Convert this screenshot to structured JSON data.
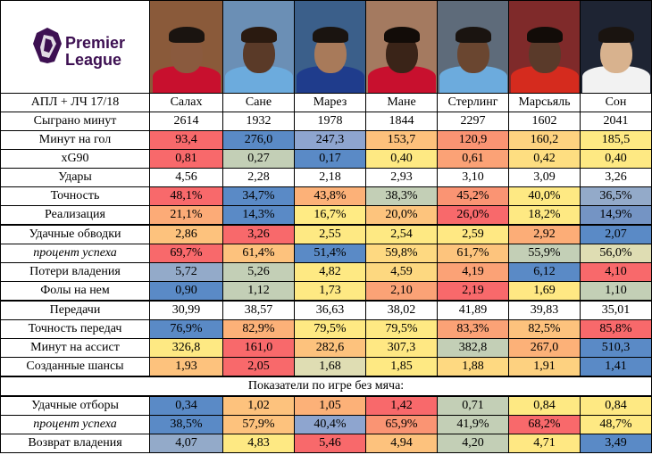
{
  "brand": {
    "line1": "Premier",
    "line2": "League"
  },
  "header": {
    "label": "АПЛ + ЛЧ 17/18",
    "players": [
      "Салах",
      "Сане",
      "Марез",
      "Мане",
      "Стерлинг",
      "Марсьяль",
      "Сон"
    ]
  },
  "rows": [
    {
      "label": "Сыграно минут",
      "italic": false,
      "values": [
        "2614",
        "1932",
        "1978",
        "1844",
        "2297",
        "1602",
        "2041"
      ],
      "colors": [
        "#ffffff",
        "#ffffff",
        "#ffffff",
        "#ffffff",
        "#ffffff",
        "#ffffff",
        "#ffffff"
      ]
    },
    {
      "label": "Минут на гол",
      "italic": false,
      "values": [
        "93,4",
        "276,0",
        "247,3",
        "153,7",
        "120,9",
        "160,2",
        "185,5"
      ],
      "colors": [
        "#f8696b",
        "#5a8ac6",
        "#8ea5cf",
        "#fdc17c",
        "#fa9473",
        "#fed280",
        "#fee983"
      ]
    },
    {
      "label": "xG90",
      "italic": false,
      "values": [
        "0,81",
        "0,27",
        "0,17",
        "0,40",
        "0,61",
        "0,42",
        "0,40"
      ],
      "colors": [
        "#f8696b",
        "#c3cfb6",
        "#5a8ac6",
        "#fee983",
        "#fba276",
        "#fede81",
        "#fee983"
      ]
    },
    {
      "label": "Удары",
      "italic": false,
      "values": [
        "4,56",
        "2,28",
        "2,18",
        "2,93",
        "3,10",
        "3,09",
        "3,26"
      ],
      "colors": [
        "#ffffff",
        "#ffffff",
        "#ffffff",
        "#ffffff",
        "#ffffff",
        "#ffffff",
        "#ffffff"
      ]
    },
    {
      "label": "Точность",
      "italic": false,
      "values": [
        "48,1%",
        "34,7%",
        "43,8%",
        "38,3%",
        "45,2%",
        "40,0%",
        "36,5%"
      ],
      "colors": [
        "#f8696b",
        "#5a8ac6",
        "#fcb178",
        "#c3cfb6",
        "#fa9473",
        "#fee983",
        "#93aac9"
      ]
    },
    {
      "label": "Реализация",
      "italic": false,
      "values": [
        "21,1%",
        "14,3%",
        "16,7%",
        "20,0%",
        "26,0%",
        "18,2%",
        "14,9%"
      ],
      "colors": [
        "#fcab77",
        "#5a8ac6",
        "#ffeb84",
        "#fdc47d",
        "#f8696b",
        "#fee983",
        "#7494c4"
      ]
    },
    {
      "label": "Удачные обводки",
      "italic": false,
      "thick": true,
      "values": [
        "2,86",
        "3,26",
        "2,55",
        "2,54",
        "2,59",
        "2,92",
        "2,07"
      ],
      "colors": [
        "#fdc27d",
        "#f8696b",
        "#fee983",
        "#fee983",
        "#ffe883",
        "#fcad77",
        "#5a8ac6"
      ]
    },
    {
      "label": "процент успеха",
      "italic": true,
      "values": [
        "69,7%",
        "61,4%",
        "51,4%",
        "59,8%",
        "61,7%",
        "55,9%",
        "56,0%"
      ],
      "colors": [
        "#f8696b",
        "#fdc27d",
        "#5a8ac6",
        "#fed981",
        "#fdc47d",
        "#c3cfb6",
        "#dfddb3"
      ]
    },
    {
      "label": "Потери владения",
      "italic": false,
      "values": [
        "5,72",
        "5,26",
        "4,82",
        "4,59",
        "4,19",
        "6,12",
        "4,10"
      ],
      "colors": [
        "#93aac9",
        "#c3cfb6",
        "#fee983",
        "#fdd880",
        "#fba276",
        "#5a8ac6",
        "#f8696b"
      ]
    },
    {
      "label": "Фолы на нем",
      "italic": false,
      "values": [
        "0,90",
        "1,12",
        "1,73",
        "2,10",
        "2,19",
        "1,69",
        "1,10"
      ],
      "colors": [
        "#5a8ac6",
        "#c3cfb6",
        "#fee983",
        "#fba276",
        "#f8696b",
        "#ffe883",
        "#c3cfb6"
      ]
    },
    {
      "label": "Передачи",
      "italic": false,
      "thick": true,
      "values": [
        "30,99",
        "38,57",
        "36,63",
        "38,02",
        "41,89",
        "39,83",
        "35,01"
      ],
      "colors": [
        "#ffffff",
        "#ffffff",
        "#ffffff",
        "#ffffff",
        "#ffffff",
        "#ffffff",
        "#ffffff"
      ]
    },
    {
      "label": "Точность передач",
      "italic": false,
      "values": [
        "76,9%",
        "82,9%",
        "79,5%",
        "79,5%",
        "83,3%",
        "82,5%",
        "85,8%"
      ],
      "colors": [
        "#5a8ac6",
        "#fcb178",
        "#fee983",
        "#fee983",
        "#fba276",
        "#fdc27d",
        "#f8696b"
      ]
    },
    {
      "label": "Минут на ассист",
      "italic": false,
      "values": [
        "326,8",
        "161,0",
        "282,6",
        "307,3",
        "382,8",
        "267,0",
        "510,3"
      ],
      "colors": [
        "#fee983",
        "#f8696b",
        "#fdc27d",
        "#ffe883",
        "#c3cfb6",
        "#fcb178",
        "#5a8ac6"
      ]
    },
    {
      "label": "Созданные шансы",
      "italic": false,
      "values": [
        "1,93",
        "2,05",
        "1,68",
        "1,85",
        "1,88",
        "1,91",
        "1,41"
      ],
      "colors": [
        "#fdc27d",
        "#f8696b",
        "#dfddb3",
        "#fee983",
        "#fed981",
        "#fdd180",
        "#5a8ac6"
      ]
    },
    {
      "label": "Показатели по игре без мяча:",
      "section": true,
      "thick": true
    },
    {
      "label": "Удачные отборы",
      "italic": false,
      "thick": true,
      "values": [
        "0,34",
        "1,02",
        "1,05",
        "1,42",
        "0,71",
        "0,84",
        "0,84"
      ],
      "colors": [
        "#5a8ac6",
        "#fdc27d",
        "#fcb178",
        "#f8696b",
        "#c3cfb6",
        "#fee983",
        "#fee983"
      ]
    },
    {
      "label": "процент успеха",
      "italic": true,
      "values": [
        "38,5%",
        "57,9%",
        "40,4%",
        "65,9%",
        "41,9%",
        "68,2%",
        "48,7%"
      ],
      "colors": [
        "#5a8ac6",
        "#fdc27d",
        "#8ea5cf",
        "#fa9473",
        "#c3cfb6",
        "#f8696b",
        "#fee983"
      ]
    },
    {
      "label": "Возврат владения",
      "italic": false,
      "values": [
        "4,07",
        "4,83",
        "5,46",
        "4,94",
        "4,20",
        "4,71",
        "3,49"
      ],
      "colors": [
        "#93aac9",
        "#fee983",
        "#f8696b",
        "#fdc27d",
        "#c3cfb6",
        "#ffe883",
        "#5a8ac6"
      ]
    }
  ],
  "photo_colors": {
    "bg": [
      "#8a5a3a",
      "#6b8fb5",
      "#3b5f8a",
      "#a47a60",
      "#5e6b7a",
      "#7f2a2a",
      "#1e2433"
    ],
    "skin": [
      "#8a5a3e",
      "#5a3a28",
      "#a87a5a",
      "#3a2418",
      "#6a4630",
      "#5a3a2a",
      "#d8b28e"
    ],
    "hair": [
      "#1a1410",
      "#2a1a10",
      "#1a1410",
      "#120c08",
      "#1a1410",
      "#120c08",
      "#1a1410"
    ],
    "shirt": [
      "#c8102e",
      "#6cabdd",
      "#1f3c8c",
      "#c8102e",
      "#6cabdd",
      "#d52b1e",
      "#f2f2f2"
    ]
  }
}
